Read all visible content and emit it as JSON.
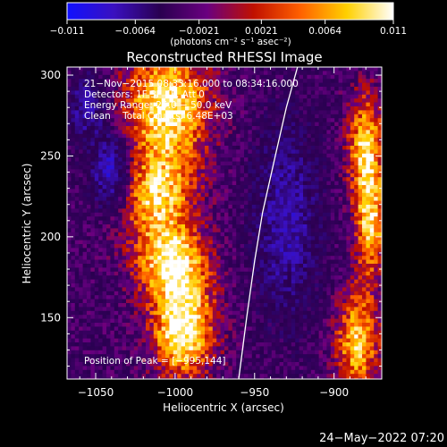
{
  "chart_data": {
    "type": "heatmap",
    "title": "Reconstructed RHESSI Image",
    "xlabel": "Heliocentric X (arcsec)",
    "ylabel": "Heliocentric Y (arcsec)",
    "xlim": [
      -1068,
      -870
    ],
    "ylim": [
      112,
      305
    ],
    "xticks": [
      {
        "value": -1050,
        "label": "−1050"
      },
      {
        "value": -1000,
        "label": "−1000"
      },
      {
        "value": -950,
        "label": "−950"
      },
      {
        "value": -900,
        "label": "−900"
      }
    ],
    "yticks": [
      {
        "value": 150,
        "label": "150"
      },
      {
        "value": 200,
        "label": "200"
      },
      {
        "value": 250,
        "label": "250"
      },
      {
        "value": 300,
        "label": "300"
      }
    ],
    "colorbar": {
      "min": -0.011,
      "max": 0.011,
      "tick_values": [
        -0.011,
        -0.0064,
        -0.0021,
        0.0021,
        0.0064,
        0.011
      ],
      "tick_labels": [
        "−0.011",
        "−0.0064",
        "−0.0021",
        "0.0021",
        "0.0064",
        "0.011"
      ],
      "unit_label": "(photons cm⁻² s⁻¹ asec⁻²)",
      "colors": [
        "#1010ff",
        "#3a10c0",
        "#2a0050",
        "#6a0080",
        "#c01000",
        "#ff6000",
        "#ffd000",
        "#ffffff"
      ]
    },
    "annotations": [
      "21−Nov−2015 08:33:16.000 to 08:34:16.000",
      "Detectors: 1F 3F 4F, Att 0",
      "Energy Range: 25.0 − 50.0 keV",
      "Clean    Total Counts: 6.48E+03"
    ],
    "peak_label": "Position of Peak = [−995,144]",
    "limb_curve": [
      {
        "x": -960,
        "y": 112
      },
      {
        "x": -955,
        "y": 150
      },
      {
        "x": -950,
        "y": 185
      },
      {
        "x": -945,
        "y": 215
      },
      {
        "x": -937,
        "y": 250
      },
      {
        "x": -930,
        "y": 280
      },
      {
        "x": -923,
        "y": 305
      }
    ],
    "sources": [
      {
        "x": -995,
        "y": 144,
        "sx": 14,
        "sy": 22,
        "amp": 0.0115
      },
      {
        "x": -1003,
        "y": 185,
        "sx": 16,
        "sy": 16,
        "amp": 0.0095
      },
      {
        "x": -1012,
        "y": 225,
        "sx": 17,
        "sy": 18,
        "amp": 0.0085
      },
      {
        "x": -1005,
        "y": 280,
        "sx": 19,
        "sy": 26,
        "amp": 0.0108
      },
      {
        "x": -880,
        "y": 255,
        "sx": 8,
        "sy": 24,
        "amp": 0.0095
      },
      {
        "x": -877,
        "y": 205,
        "sx": 7,
        "sy": 22,
        "amp": 0.0085
      },
      {
        "x": -885,
        "y": 135,
        "sx": 10,
        "sy": 22,
        "amp": 0.009
      },
      {
        "x": -1040,
        "y": 240,
        "sx": 9,
        "sy": 16,
        "amp": -0.0085
      },
      {
        "x": -1055,
        "y": 280,
        "sx": 8,
        "sy": 14,
        "amp": -0.006
      },
      {
        "x": -930,
        "y": 210,
        "sx": 14,
        "sy": 40,
        "amp": -0.006
      }
    ]
  },
  "footer": {
    "date": "24−May−2022 07:20"
  }
}
